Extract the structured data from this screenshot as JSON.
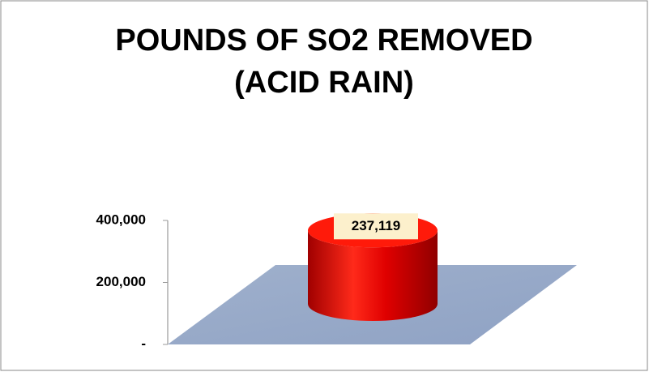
{
  "chart_data": {
    "type": "bar3d",
    "title": [
      "POUNDS OF SO2 REMOVED",
      "(ACID RAIN)"
    ],
    "categories": [
      null
    ],
    "values": [
      237119
    ],
    "value_labels": [
      "237,119"
    ],
    "color": "#e00000",
    "ylim": [
      0,
      400000
    ],
    "yticks": [
      {
        "value": 0,
        "label": "-"
      },
      {
        "value": 200000,
        "label": "200,000"
      },
      {
        "value": 400000,
        "label": "400,000"
      }
    ],
    "grid": false
  }
}
